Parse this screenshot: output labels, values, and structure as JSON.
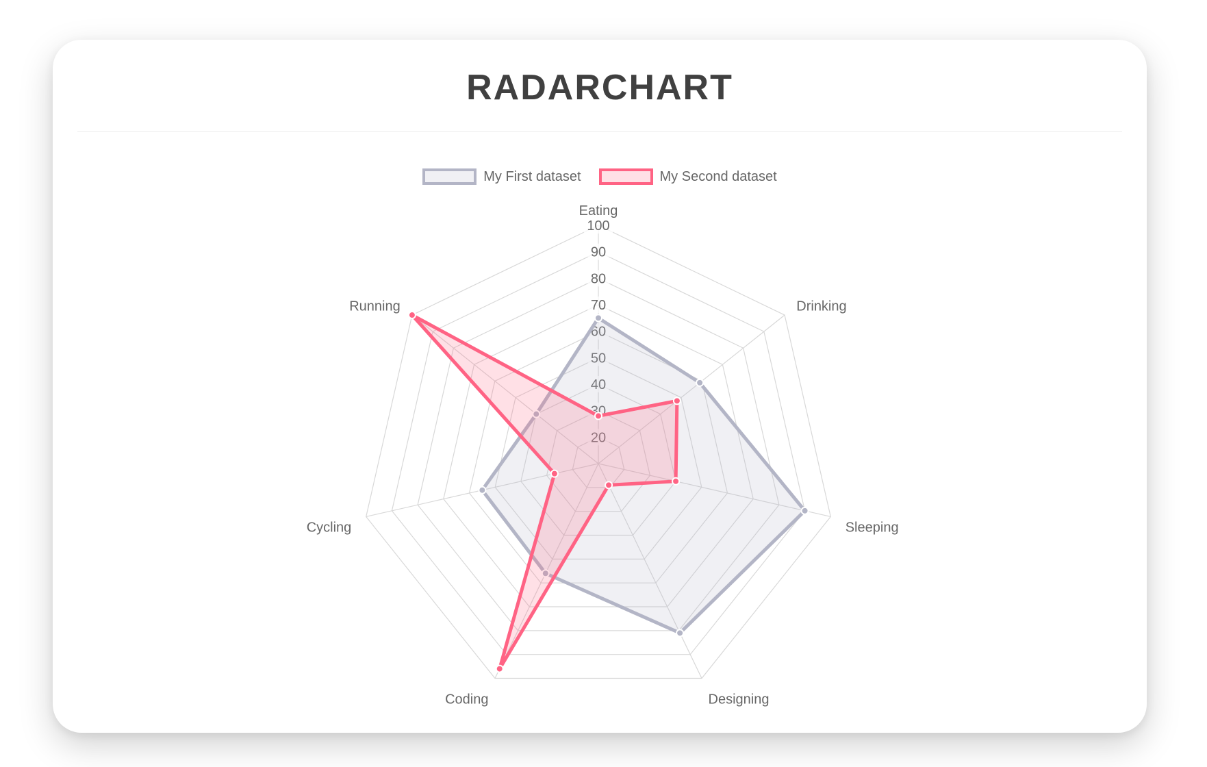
{
  "page_title": "RADARCHART",
  "chart_data": {
    "type": "radar",
    "title": "RADARCHART",
    "categories": [
      "Eating",
      "Drinking",
      "Sleeping",
      "Designing",
      "Coding",
      "Cycling",
      "Running"
    ],
    "series": [
      {
        "name": "My First dataset",
        "values": [
          65,
          59,
          90,
          81,
          56,
          55,
          40
        ],
        "border_color": "rgb(179,181,198)",
        "fill_color": "rgba(179,181,198,0.2)",
        "point_border_color": "#ffffff"
      },
      {
        "name": "My Second dataset",
        "values": [
          28,
          48,
          40,
          19,
          96,
          27,
          100
        ],
        "border_color": "rgb(255,99,132)",
        "fill_color": "rgba(255,99,132,0.2)",
        "point_border_color": "#ffffff"
      }
    ],
    "scale": {
      "min": 10,
      "max": 100,
      "ticks": [
        20,
        30,
        40,
        50,
        60,
        70,
        80,
        90,
        100
      ]
    },
    "legend_position": "top",
    "grid": true,
    "grid_color": "#d8d8d8",
    "tick_label_color": "#696969",
    "point_label_color": "#666666",
    "tick_backdrop_color": "rgba(255,255,255,0.75)"
  }
}
